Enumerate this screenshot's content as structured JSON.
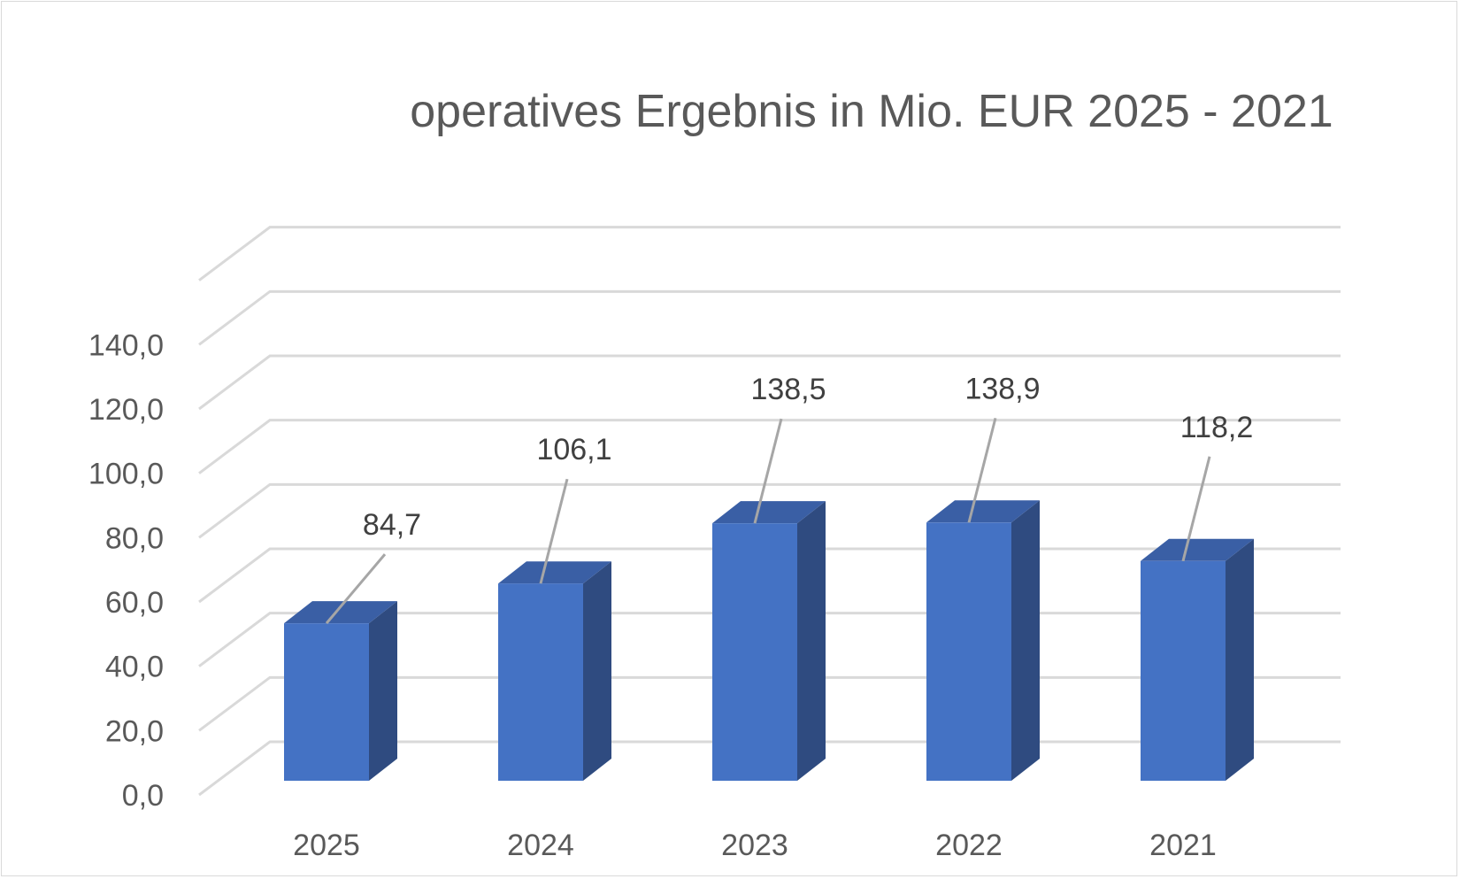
{
  "chart_data": {
    "type": "bar",
    "title": "operatives Ergebnis in Mio. EUR 2025 - 2021",
    "categories": [
      "2025",
      "2024",
      "2023",
      "2022",
      "2021"
    ],
    "values": [
      84.7,
      106.1,
      138.5,
      138.9,
      118.2
    ],
    "data_labels": [
      "84,7",
      "106,1",
      "138,5",
      "138,9",
      "118,2"
    ],
    "y_tick_labels": [
      "0,0",
      "20,0",
      "40,0",
      "60,0",
      "80,0",
      "100,0",
      "120,0",
      "140,0"
    ],
    "y_ticks": [
      0,
      20,
      40,
      60,
      80,
      100,
      120,
      140
    ],
    "ylim": [
      0,
      160
    ],
    "grid": true,
    "style": "3d-column",
    "colors": {
      "bar_front": "#4472c4",
      "bar_side": "#2f4b80",
      "bar_top": "#3a5fa5",
      "grid": "#d9d9d9",
      "text": "#595959",
      "leader": "#a6a6a6"
    }
  }
}
